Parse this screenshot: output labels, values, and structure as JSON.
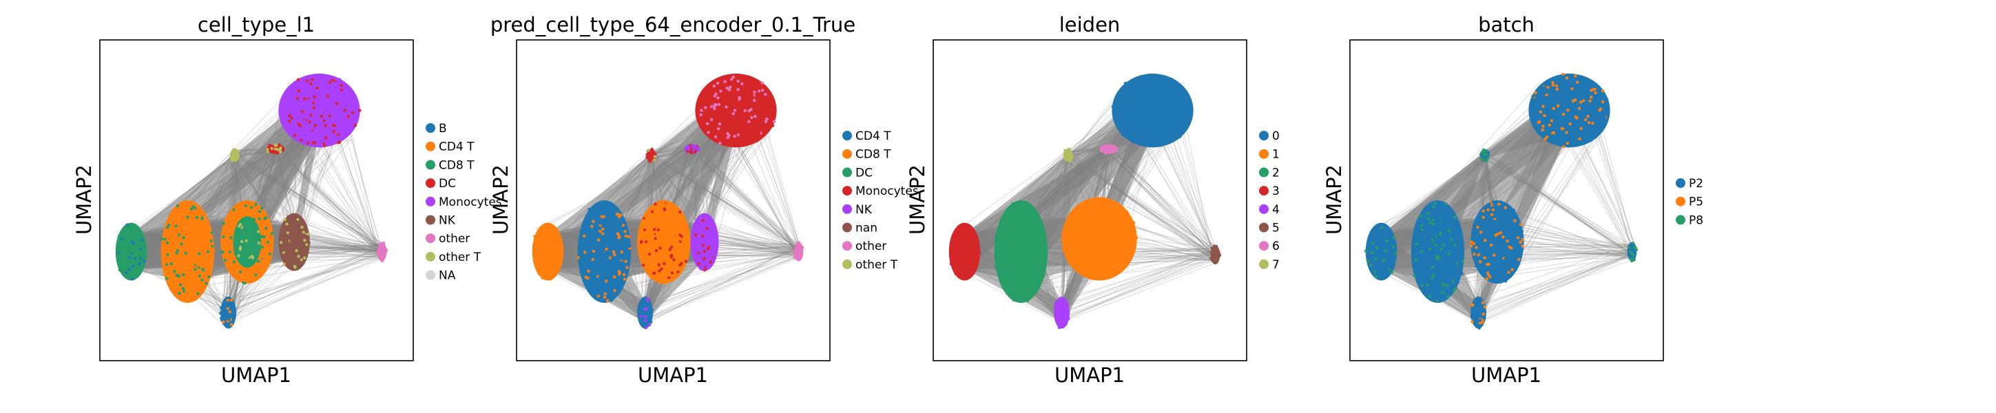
{
  "figure": {
    "type": "scatter",
    "subtype": "umap-embedding-with-paga-edges",
    "columns": 4
  },
  "chart_data": [
    {
      "type": "scatter",
      "title": "cell_type_l1",
      "xlabel": "UMAP1",
      "ylabel": "UMAP2",
      "grid": false,
      "legend_position": "right",
      "edge_color": "#808080",
      "series": [
        {
          "name": "B",
          "color": "#1f77b4"
        },
        {
          "name": "CD4 T",
          "color": "#ff7f0e"
        },
        {
          "name": "CD8 T",
          "color": "#279e68"
        },
        {
          "name": "DC",
          "color": "#d62728"
        },
        {
          "name": "Monocytes",
          "color": "#aa40fc"
        },
        {
          "name": "NK",
          "color": "#8c564b"
        },
        {
          "name": "other",
          "color": "#e377c2"
        },
        {
          "name": "other T",
          "color": "#b5bd61"
        },
        {
          "name": "NA",
          "color": "#d3d3d3"
        }
      ],
      "clusters": [
        {
          "x": 0.7,
          "y": 0.78,
          "w": 0.26,
          "h": 0.23,
          "color": "#aa40fc",
          "sprinkle": "#d62728"
        },
        {
          "x": 0.1,
          "y": 0.34,
          "w": 0.1,
          "h": 0.18,
          "color": "#279e68",
          "sprinkle": "#1f77b4"
        },
        {
          "x": 0.28,
          "y": 0.34,
          "w": 0.17,
          "h": 0.32,
          "color": "#ff7f0e",
          "sprinkle": "#279e68"
        },
        {
          "x": 0.47,
          "y": 0.37,
          "w": 0.17,
          "h": 0.26,
          "color": "#ff7f0e",
          "sprinkle": "#279e68"
        },
        {
          "x": 0.47,
          "y": 0.37,
          "w": 0.09,
          "h": 0.16,
          "color": "#279e68",
          "sprinkle": "#b5bd61"
        },
        {
          "x": 0.62,
          "y": 0.37,
          "w": 0.1,
          "h": 0.18,
          "color": "#8c564b",
          "sprinkle": "#b5bd61"
        },
        {
          "x": 0.41,
          "y": 0.15,
          "w": 0.05,
          "h": 0.1,
          "color": "#1f77b4",
          "sprinkle": "#ff7f0e"
        },
        {
          "x": 0.56,
          "y": 0.66,
          "w": 0.06,
          "h": 0.03,
          "color": "#d62728",
          "sprinkle": "#b5bd61"
        },
        {
          "x": 0.43,
          "y": 0.64,
          "w": 0.03,
          "h": 0.04,
          "color": "#b5bd61",
          "sprinkle": "#b5bd61"
        },
        {
          "x": 0.9,
          "y": 0.34,
          "w": 0.03,
          "h": 0.06,
          "color": "#e377c2",
          "sprinkle": "#e377c2"
        }
      ]
    },
    {
      "type": "scatter",
      "title": "pred_cell_type_64_encoder_0.1_True",
      "xlabel": "UMAP1",
      "ylabel": "UMAP2",
      "grid": false,
      "legend_position": "right",
      "edge_color": "#808080",
      "series": [
        {
          "name": "CD4 T",
          "color": "#1f77b4"
        },
        {
          "name": "CD8 T",
          "color": "#ff7f0e"
        },
        {
          "name": "DC",
          "color": "#279e68"
        },
        {
          "name": "Monocytes",
          "color": "#d62728"
        },
        {
          "name": "NK",
          "color": "#aa40fc"
        },
        {
          "name": "nan",
          "color": "#8c564b"
        },
        {
          "name": "other",
          "color": "#e377c2"
        },
        {
          "name": "other T",
          "color": "#b5bd61"
        }
      ],
      "clusters": [
        {
          "x": 0.7,
          "y": 0.78,
          "w": 0.26,
          "h": 0.23,
          "color": "#d62728",
          "sprinkle": "#e377c2"
        },
        {
          "x": 0.1,
          "y": 0.34,
          "w": 0.1,
          "h": 0.18,
          "color": "#ff7f0e",
          "sprinkle": "#ff7f0e"
        },
        {
          "x": 0.28,
          "y": 0.34,
          "w": 0.17,
          "h": 0.32,
          "color": "#1f77b4",
          "sprinkle": "#ff7f0e"
        },
        {
          "x": 0.47,
          "y": 0.37,
          "w": 0.17,
          "h": 0.26,
          "color": "#ff7f0e",
          "sprinkle": "#d62728"
        },
        {
          "x": 0.6,
          "y": 0.37,
          "w": 0.09,
          "h": 0.18,
          "color": "#aa40fc",
          "sprinkle": "#d62728"
        },
        {
          "x": 0.41,
          "y": 0.15,
          "w": 0.05,
          "h": 0.1,
          "color": "#1f77b4",
          "sprinkle": "#aa40fc"
        },
        {
          "x": 0.56,
          "y": 0.66,
          "w": 0.05,
          "h": 0.03,
          "color": "#aa40fc",
          "sprinkle": "#d62728"
        },
        {
          "x": 0.43,
          "y": 0.64,
          "w": 0.03,
          "h": 0.04,
          "color": "#d62728",
          "sprinkle": "#b5bd61"
        },
        {
          "x": 0.9,
          "y": 0.34,
          "w": 0.03,
          "h": 0.06,
          "color": "#e377c2",
          "sprinkle": "#e377c2"
        }
      ]
    },
    {
      "type": "scatter",
      "title": "leiden",
      "xlabel": "UMAP1",
      "ylabel": "UMAP2",
      "grid": false,
      "legend_position": "right",
      "edge_color": "#808080",
      "series": [
        {
          "name": "0",
          "color": "#1f77b4"
        },
        {
          "name": "1",
          "color": "#ff7f0e"
        },
        {
          "name": "2",
          "color": "#279e68"
        },
        {
          "name": "3",
          "color": "#d62728"
        },
        {
          "name": "4",
          "color": "#aa40fc"
        },
        {
          "name": "5",
          "color": "#8c564b"
        },
        {
          "name": "6",
          "color": "#e377c2"
        },
        {
          "name": "7",
          "color": "#b5bd61"
        }
      ],
      "clusters": [
        {
          "x": 0.7,
          "y": 0.78,
          "w": 0.26,
          "h": 0.23,
          "color": "#1f77b4",
          "sprinkle": "#1f77b4"
        },
        {
          "x": 0.1,
          "y": 0.34,
          "w": 0.1,
          "h": 0.18,
          "color": "#d62728",
          "sprinkle": "#d62728"
        },
        {
          "x": 0.28,
          "y": 0.34,
          "w": 0.17,
          "h": 0.32,
          "color": "#279e68",
          "sprinkle": "#279e68"
        },
        {
          "x": 0.53,
          "y": 0.38,
          "w": 0.24,
          "h": 0.26,
          "color": "#ff7f0e",
          "sprinkle": "#ff7f0e"
        },
        {
          "x": 0.41,
          "y": 0.15,
          "w": 0.05,
          "h": 0.1,
          "color": "#aa40fc",
          "sprinkle": "#aa40fc"
        },
        {
          "x": 0.56,
          "y": 0.66,
          "w": 0.06,
          "h": 0.03,
          "color": "#e377c2",
          "sprinkle": "#e377c2"
        },
        {
          "x": 0.43,
          "y": 0.64,
          "w": 0.03,
          "h": 0.04,
          "color": "#b5bd61",
          "sprinkle": "#b5bd61"
        },
        {
          "x": 0.9,
          "y": 0.33,
          "w": 0.03,
          "h": 0.06,
          "color": "#8c564b",
          "sprinkle": "#8c564b"
        }
      ]
    },
    {
      "type": "scatter",
      "title": "batch",
      "xlabel": "UMAP1",
      "ylabel": "UMAP2",
      "grid": false,
      "legend_position": "right",
      "edge_color": "#808080",
      "series": [
        {
          "name": "P2",
          "color": "#1f77b4"
        },
        {
          "name": "P5",
          "color": "#ff7f0e"
        },
        {
          "name": "P8",
          "color": "#279e68"
        }
      ],
      "clusters": [
        {
          "x": 0.7,
          "y": 0.78,
          "w": 0.26,
          "h": 0.23,
          "color": "#1f77b4",
          "sprinkle": "#ff7f0e"
        },
        {
          "x": 0.1,
          "y": 0.34,
          "w": 0.1,
          "h": 0.18,
          "color": "#1f77b4",
          "sprinkle": "#279e68"
        },
        {
          "x": 0.28,
          "y": 0.34,
          "w": 0.17,
          "h": 0.32,
          "color": "#1f77b4",
          "sprinkle": "#279e68"
        },
        {
          "x": 0.47,
          "y": 0.37,
          "w": 0.17,
          "h": 0.26,
          "color": "#1f77b4",
          "sprinkle": "#ff7f0e"
        },
        {
          "x": 0.41,
          "y": 0.15,
          "w": 0.05,
          "h": 0.1,
          "color": "#1f77b4",
          "sprinkle": "#ff7f0e"
        },
        {
          "x": 0.43,
          "y": 0.64,
          "w": 0.03,
          "h": 0.04,
          "color": "#1f77b4",
          "sprinkle": "#279e68"
        },
        {
          "x": 0.9,
          "y": 0.34,
          "w": 0.03,
          "h": 0.06,
          "color": "#1f77b4",
          "sprinkle": "#279e68"
        }
      ]
    }
  ]
}
